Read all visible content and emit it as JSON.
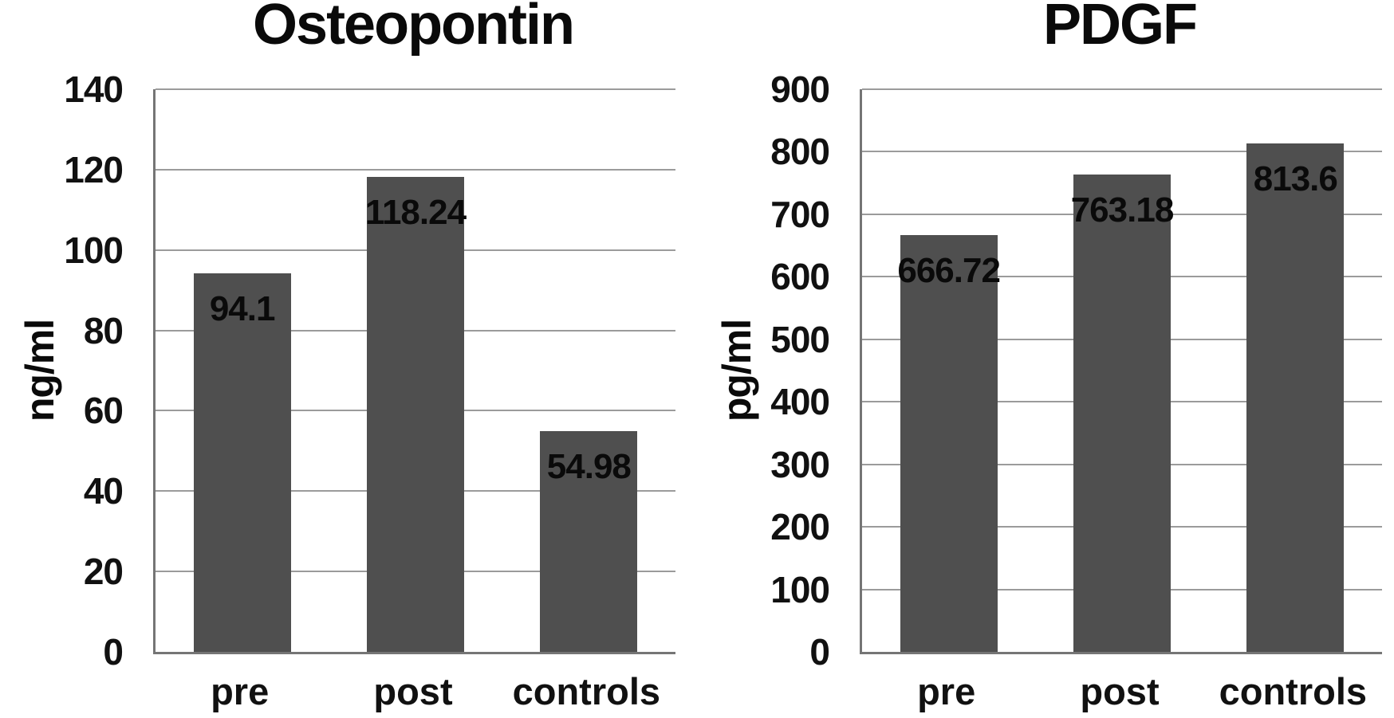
{
  "figure": {
    "background_color": "#ffffff",
    "bar_color": "#4f4f4f",
    "gridline_color": "#9b9b9b",
    "axis_color": "#757575",
    "text_color": "#101010"
  },
  "chart_data": [
    {
      "type": "bar",
      "title": "Osteopontin",
      "ylabel": "ng/ml",
      "xlabel": "",
      "categories": [
        "pre",
        "post",
        "controls"
      ],
      "values": [
        94.1,
        118.24,
        54.98
      ],
      "value_labels": [
        "94.1",
        "118.24",
        "54.98"
      ],
      "ylim": [
        0,
        140
      ],
      "ytick_step": 20,
      "ytick_labels": [
        "140",
        "120",
        "100",
        "80",
        "60",
        "40",
        "20",
        "0"
      ],
      "grid": true,
      "legend": false
    },
    {
      "type": "bar",
      "title": "PDGF",
      "ylabel": "pg/ml",
      "xlabel": "",
      "categories": [
        "pre",
        "post",
        "controls"
      ],
      "values": [
        666.72,
        763.18,
        813.6
      ],
      "value_labels": [
        "666.72",
        "763.18",
        "813.6"
      ],
      "ylim": [
        0,
        900
      ],
      "ytick_step": 100,
      "ytick_labels": [
        "900",
        "800",
        "700",
        "600",
        "500",
        "400",
        "300",
        "200",
        "100",
        "0"
      ],
      "grid": true,
      "legend": false
    }
  ]
}
